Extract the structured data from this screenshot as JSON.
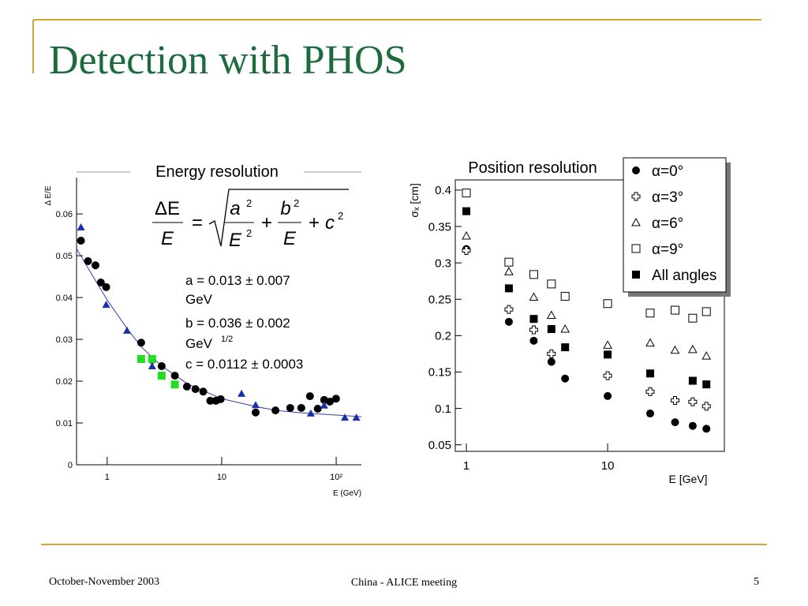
{
  "title": "Detection with PHOS",
  "footer": {
    "left": "October-November 2003",
    "center": "China - ALICE meeting",
    "right": "5"
  },
  "formula": [
    "ΔE",
    "E",
    "=",
    "a",
    "2",
    "E",
    "2",
    "+",
    "b",
    "2",
    "E",
    "+",
    "c",
    "2"
  ],
  "parameters": [
    "a = 0.013 ± 0.007",
    "GeV",
    "b = 0.036 ± 0.002",
    "GeV",
    "1/2",
    "c = 0.0112 ± 0.0003"
  ],
  "chart_data": [
    {
      "type": "scatter",
      "title": "Energy resolution",
      "x_label": "E (GeV)",
      "y_label": "Δ E/E",
      "xlog": true,
      "xlim": [
        0.54,
        166
      ],
      "xticks": [
        1,
        10,
        {
          "value": 100,
          "label": "10²"
        }
      ],
      "ylim": [
        0,
        0.0687
      ],
      "yticks": [
        0,
        0.01,
        0.02,
        0.03,
        0.04,
        0.05,
        0.06
      ],
      "series": [
        {
          "color": "#000000",
          "marker": "circle",
          "x": [
            0.59,
            0.68,
            0.79,
            0.88,
            0.98,
            1.98,
            2.47,
            2.99,
            3.9,
            4.97,
            5.9,
            6.9,
            7.95,
            8.9,
            9.8,
            19.8,
            29.5,
            39.7,
            49.6,
            59,
            69,
            78.6,
            88,
            99.6
          ],
          "values": [
            0.0536,
            0.0487,
            0.0477,
            0.0436,
            0.0425,
            0.0292,
            0.0251,
            0.0236,
            0.0213,
            0.0187,
            0.0181,
            0.0175,
            0.0153,
            0.0153,
            0.0157,
            0.0125,
            0.013,
            0.0136,
            0.0136,
            0.0164,
            0.0134,
            0.0155,
            0.0151,
            0.0158
          ]
        },
        {
          "color": "#1a2fb0",
          "marker": "triangle",
          "x": [
            0.59,
            0.98,
            1.49,
            2.47,
            14.9,
            19.8,
            60,
            78.6,
            119,
            150
          ],
          "values": [
            0.0568,
            0.0383,
            0.0321,
            0.0236,
            0.017,
            0.0143,
            0.0123,
            0.0142,
            0.0113,
            0.0113
          ]
        },
        {
          "color": "#22dd22",
          "marker": "square",
          "x": [
            1.98,
            2.47,
            2.99,
            3.9
          ],
          "values": [
            0.0253,
            0.0253,
            0.0213,
            0.0192
          ]
        }
      ],
      "curve": {
        "color": "#3a3ab0",
        "x": [
          0.54,
          0.7,
          1,
          1.5,
          2,
          3,
          5,
          10,
          20,
          30,
          50,
          100,
          166
        ],
        "values": [
          0.0517,
          0.0465,
          0.0394,
          0.0325,
          0.0281,
          0.0236,
          0.0194,
          0.0158,
          0.0139,
          0.013,
          0.0124,
          0.0119,
          0.0115
        ]
      }
    },
    {
      "type": "scatter",
      "title": "Position resolution",
      "x_label": "E [GeV]",
      "y_label": "σₓ [cm]",
      "xlog": true,
      "xlim": [
        0.835,
        67
      ],
      "xticks": [
        1,
        10
      ],
      "ylim": [
        0.041,
        0.414
      ],
      "yticks": [
        0.05,
        0.1,
        0.15,
        0.2,
        0.25,
        0.3,
        0.35,
        0.4
      ],
      "x": [
        1,
        2,
        3,
        4,
        5,
        10,
        20,
        30,
        40,
        50
      ],
      "series": [
        {
          "name": "α=0°",
          "color": "#000000",
          "marker": "circle",
          "values": [
            0.319,
            0.219,
            0.193,
            0.164,
            0.141,
            0.117,
            0.093,
            0.081,
            0.076,
            0.072
          ]
        },
        {
          "name": "α=3°",
          "color": "#000000",
          "marker": "cross",
          "values": [
            0.317,
            0.236,
            0.208,
            0.175,
            null,
            0.145,
            0.123,
            0.111,
            0.109,
            0.103
          ]
        },
        {
          "name": "α=6°",
          "color": "#000000",
          "marker": "open-triangle",
          "values": [
            0.337,
            0.288,
            0.253,
            0.228,
            0.209,
            0.187,
            0.19,
            0.18,
            0.181,
            0.172
          ]
        },
        {
          "name": "α=9°",
          "color": "#000000",
          "marker": "open-square",
          "values": [
            0.396,
            0.301,
            0.284,
            0.271,
            0.254,
            0.244,
            0.231,
            0.235,
            0.224,
            0.233
          ]
        },
        {
          "name": "All angles",
          "color": "#000000",
          "marker": "square",
          "values": [
            0.371,
            0.265,
            0.223,
            0.209,
            0.184,
            0.174,
            0.148,
            null,
            0.138,
            0.133
          ]
        }
      ]
    }
  ]
}
